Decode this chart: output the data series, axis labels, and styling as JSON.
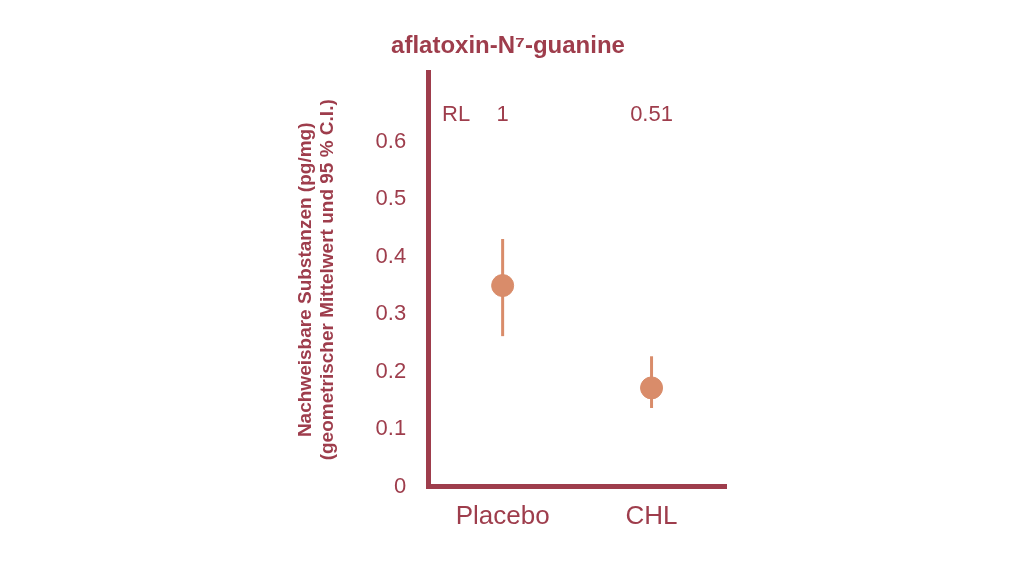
{
  "chart_data": {
    "type": "scatter",
    "title": "aflatoxin-N⁷-guanine",
    "ylabel": "Nachweisbare Substanzen (pg/mg)\n(geometrischer Mittelwert und 95 % C.I.)",
    "categories": [
      "Placebo",
      "CHL"
    ],
    "series": [
      {
        "color": "#d98c6a",
        "values": [
          0.35,
          0.172
        ],
        "errors": [
          [
            0.262,
            0.431
          ],
          [
            0.137,
            0.227
          ]
        ]
      }
    ],
    "ylim": [
      0,
      0.72
    ],
    "yticks": [
      0,
      0.1,
      0.2,
      0.3,
      0.4,
      0.5,
      0.6
    ],
    "grid": false,
    "legend": false,
    "marker": "circle",
    "annotations": [
      "RL",
      "1",
      "0.51"
    ]
  }
}
